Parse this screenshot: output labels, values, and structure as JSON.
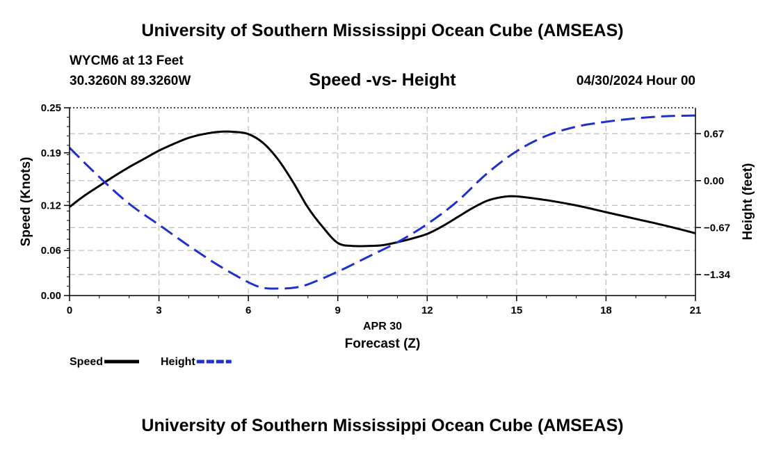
{
  "header": {
    "title": "University of Southern Mississippi Ocean Cube (AMSEAS)",
    "station": "WYCM6 at 13 Feet",
    "coords": "30.3260N  89.3260W",
    "subtitle": "Speed -vs- Height",
    "datetime": "04/30/2024 Hour 00"
  },
  "footer": {
    "title": "University of Southern Mississippi Ocean Cube (AMSEAS)"
  },
  "chart_data": {
    "type": "line",
    "title": "Speed -vs- Height",
    "xlabel": "Forecast (Z)",
    "xlabel_date": "APR 30",
    "ylabel": "Speed (Knots)",
    "y2label": "Height (feet)",
    "xlim": [
      0,
      21
    ],
    "ylim": [
      0,
      0.25
    ],
    "y2lim": [
      -1.64,
      1.04
    ],
    "grid": true,
    "legend_position": "bottom-left",
    "x_ticks": [
      0,
      3,
      6,
      9,
      12,
      15,
      18,
      21
    ],
    "x_tick_labels": [
      "0",
      "3",
      "6",
      "9",
      "12",
      "15",
      "18",
      "21"
    ],
    "y_ticks": [
      0,
      0.06,
      0.12,
      0.19,
      0.25
    ],
    "y_tick_labels": [
      "0.00",
      "0.06",
      "0.12",
      "0.19",
      "0.25"
    ],
    "y2_ticks": [
      0.67,
      0,
      -0.67,
      -1.34
    ],
    "y2_tick_labels": [
      "0.67",
      "0.00",
      "−0.67",
      "−1.34"
    ],
    "series": [
      {
        "name": "Speed",
        "axis": "left",
        "color": "#000000",
        "dash": "solid",
        "x": [
          0,
          0.5,
          1,
          1.5,
          2,
          2.5,
          3,
          3.5,
          4,
          4.5,
          5,
          5.5,
          6,
          6.5,
          7,
          7.5,
          8,
          8.5,
          9,
          9.5,
          10,
          10.5,
          11,
          11.5,
          12,
          12.5,
          13,
          13.5,
          14,
          14.5,
          15,
          16,
          17,
          18,
          19,
          20,
          21
        ],
        "y": [
          0.118,
          0.133,
          0.146,
          0.159,
          0.171,
          0.182,
          0.193,
          0.202,
          0.21,
          0.215,
          0.218,
          0.218,
          0.215,
          0.203,
          0.181,
          0.151,
          0.117,
          0.091,
          0.07,
          0.066,
          0.066,
          0.067,
          0.071,
          0.076,
          0.082,
          0.092,
          0.104,
          0.116,
          0.126,
          0.131,
          0.132,
          0.127,
          0.12,
          0.111,
          0.102,
          0.093,
          0.083
        ]
      },
      {
        "name": "Height",
        "axis": "right",
        "color": "#1f2fd0",
        "dash": "dashed",
        "x": [
          0,
          1,
          2,
          3,
          4,
          5,
          6,
          6.5,
          7,
          7.5,
          8,
          9,
          10,
          11,
          12,
          13,
          14,
          15,
          16,
          17,
          18,
          19,
          20,
          21
        ],
        "y": [
          0.47,
          0.05,
          -0.33,
          -0.63,
          -0.93,
          -1.21,
          -1.45,
          -1.53,
          -1.54,
          -1.53,
          -1.48,
          -1.3,
          -1.09,
          -0.88,
          -0.62,
          -0.3,
          0.1,
          0.42,
          0.64,
          0.77,
          0.84,
          0.89,
          0.92,
          0.93
        ]
      }
    ],
    "legend": [
      {
        "label": "Speed",
        "color": "#000000",
        "dash": "solid"
      },
      {
        "label": "Height",
        "color": "#1f2fd0",
        "dash": "dashed"
      }
    ]
  }
}
